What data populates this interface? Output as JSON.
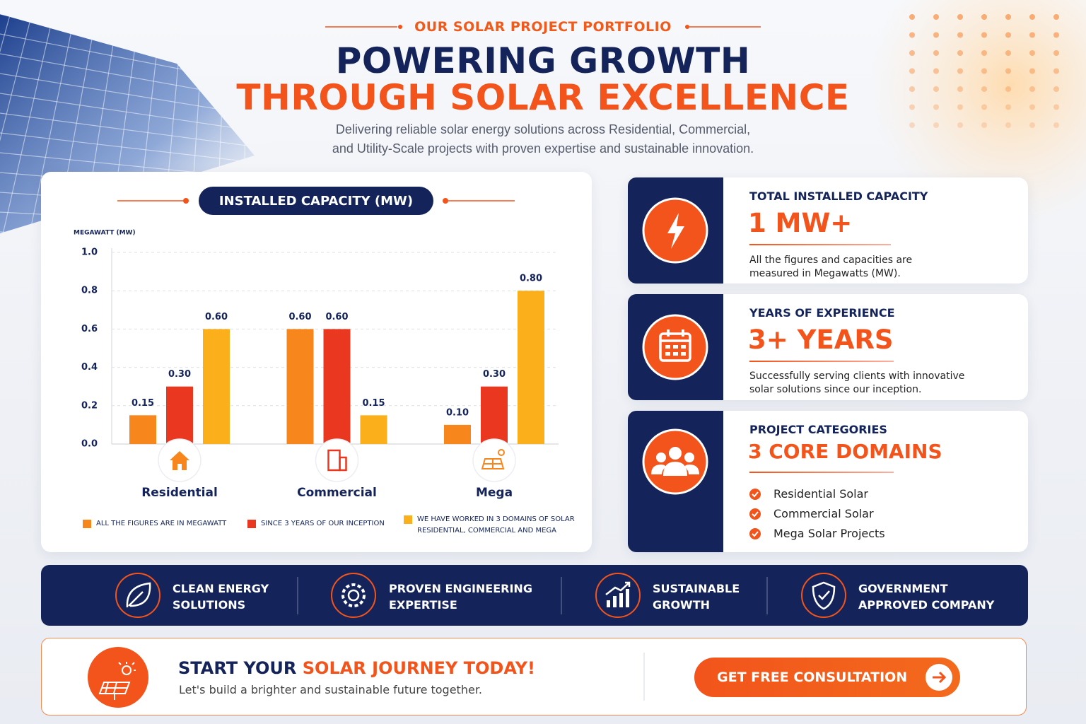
{
  "header": {
    "eyebrow": "OUR SOLAR PROJECT PORTFOLIO",
    "title_line1": "POWERING GROWTH",
    "title_line2": "THROUGH SOLAR EXCELLENCE",
    "subtitle_line1": "Delivering reliable solar energy solutions across Residential, Commercial,",
    "subtitle_line2": "and Utility-Scale projects with proven expertise and sustainable innovation."
  },
  "chart_data": {
    "type": "bar",
    "title": "INSTALLED CAPACITY (MW)",
    "y_label": "MEGAWATT (MW)",
    "categories": [
      "Residential",
      "Commercial",
      "Mega"
    ],
    "series": [
      {
        "name": "ALL THE FIGURES ARE IN MEGAWATT",
        "color": "#f7861c",
        "values": [
          0.15,
          0.6,
          0.1
        ],
        "value_labels": [
          "0.15",
          "0.60",
          "0.10"
        ]
      },
      {
        "name": "SINCE 3 YEARS OF OUR INCEPTION",
        "color": "#e9381f",
        "values": [
          0.3,
          0.6,
          0.3
        ],
        "value_labels": [
          "0.30",
          "0.60",
          "0.30"
        ]
      },
      {
        "name": "WE HAVE WORKED IN 3 DOMAINS OF SOLAR RESIDENTIAL, COMMERCIAL AND MEGA",
        "color": "#fbaf1a",
        "values": [
          0.6,
          0.15,
          0.8
        ],
        "value_labels": [
          "0.60",
          "0.15",
          "0.80"
        ]
      }
    ],
    "ylim": [
      0,
      1
    ],
    "yticks": [
      {
        "value": 0,
        "label": "0.0"
      },
      0.2,
      0.4,
      0.6,
      0.8,
      {
        "value": 1,
        "label": "1.0"
      }
    ],
    "grid": true
  },
  "stats": [
    {
      "label": "TOTAL INSTALLED CAPACITY",
      "value": "1 MW+",
      "description": "All the figures and capacities are measured in Megawatts (MW)."
    },
    {
      "label": "YEARS OF EXPERIENCE",
      "value": "3+ YEARS",
      "description": "Successfully serving clients with innovative solar solutions since our inception."
    },
    {
      "label": "PROJECT CATEGORIES",
      "value": "3 CORE DOMAINS",
      "items": [
        "Residential Solar",
        "Commercial Solar",
        "Mega Solar Projects"
      ]
    }
  ],
  "features": [
    {
      "lines": [
        "CLEAN ENERGY",
        "SOLUTIONS"
      ]
    },
    {
      "lines": [
        "PROVEN ENGINEERING",
        "EXPERTISE"
      ]
    },
    {
      "lines": [
        "SUSTAINABLE",
        "GROWTH"
      ]
    },
    {
      "lines": [
        "GOVERNMENT",
        "APPROVED COMPANY"
      ]
    }
  ],
  "cta": {
    "title_start": "START YOUR",
    "title_highlight": "SOLAR JOURNEY TODAY!",
    "subtitle": "Let's build a brighter and sustainable future together.",
    "button": "GET FREE CONSULTATION"
  }
}
